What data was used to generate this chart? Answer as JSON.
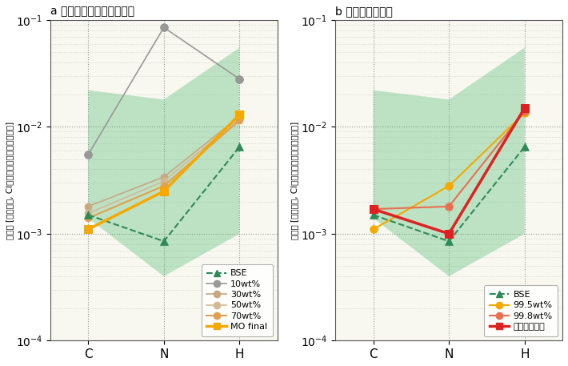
{
  "panel_a_title": "a マグマオーシャン形成期",
  "panel_b_title": "b 後期天体集積期",
  "ylabel": "存在量 [地球質量, CIコンドライト組成で規格化]",
  "xlabel_ticks": [
    "C",
    "N",
    "H"
  ],
  "panel_a": {
    "BSE": [
      0.0015,
      0.00085,
      0.0065
    ],
    "10wt%": [
      0.0055,
      0.085,
      0.028
    ],
    "30wt%": [
      0.0018,
      0.0034,
      0.0125
    ],
    "50wt%": [
      0.00155,
      0.0031,
      0.012
    ],
    "70wt%": [
      0.0014,
      0.0028,
      0.0115
    ],
    "MO_final": [
      0.0011,
      0.0025,
      0.013
    ],
    "shade_upper": [
      0.022,
      0.018,
      0.055
    ],
    "shade_lower": [
      0.0014,
      0.0004,
      0.001
    ]
  },
  "panel_b": {
    "BSE": [
      0.0015,
      0.00085,
      0.0065
    ],
    "99.5wt%": [
      0.0011,
      0.0028,
      0.0135
    ],
    "99.8wt%": [
      0.0017,
      0.0018,
      0.014
    ],
    "full": [
      0.0017,
      0.001,
      0.015
    ],
    "shade_upper": [
      0.022,
      0.018,
      0.055
    ],
    "shade_lower": [
      0.0014,
      0.0004,
      0.001
    ]
  },
  "colors": {
    "BSE": "#2e8b57",
    "10wt%": "#999999",
    "30wt%": "#c8a882",
    "50wt%": "#d4b896",
    "70wt%": "#e0a050",
    "MO_final": "#f5a800",
    "99.5wt%": "#f5a800",
    "99.8wt%": "#e87050",
    "full": "#dd2222",
    "shade": "#4db870"
  },
  "shade_alpha": 0.35,
  "background_color": "#ffffff",
  "ax_bg_color": "#f8f8f0"
}
